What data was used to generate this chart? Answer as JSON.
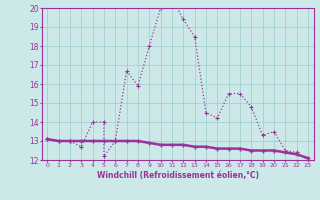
{
  "line1_x": [
    0,
    1,
    2,
    3,
    4,
    5,
    5,
    6,
    7,
    8,
    9,
    10,
    11,
    12,
    13,
    14,
    15,
    16,
    17,
    18,
    19,
    20,
    21,
    22,
    23
  ],
  "line1_y": [
    13.1,
    13.0,
    13.0,
    12.7,
    14.0,
    14.0,
    12.2,
    13.0,
    16.7,
    15.9,
    18.0,
    20.0,
    20.5,
    19.4,
    18.5,
    14.5,
    14.2,
    15.5,
    15.5,
    14.8,
    13.3,
    13.5,
    12.5,
    12.4,
    12.0
  ],
  "line2_x": [
    0,
    1,
    2,
    3,
    4,
    5,
    6,
    7,
    8,
    9,
    10,
    11,
    12,
    13,
    14,
    15,
    16,
    17,
    18,
    19,
    20,
    21,
    22,
    23
  ],
  "line2_y": [
    13.1,
    13.0,
    13.0,
    13.0,
    13.0,
    13.0,
    13.0,
    13.0,
    13.0,
    12.9,
    12.8,
    12.8,
    12.8,
    12.7,
    12.7,
    12.6,
    12.6,
    12.6,
    12.5,
    12.5,
    12.5,
    12.4,
    12.3,
    12.1
  ],
  "line_color": "#993399",
  "bg_color": "#cce8e8",
  "grid_color": "#99cccc",
  "xlabel": "Windchill (Refroidissement éolien,°C)",
  "xlim": [
    -0.5,
    23.5
  ],
  "ylim": [
    12,
    20
  ],
  "yticks": [
    12,
    13,
    14,
    15,
    16,
    17,
    18,
    19,
    20
  ],
  "xticks": [
    0,
    1,
    2,
    3,
    4,
    5,
    6,
    7,
    8,
    9,
    10,
    11,
    12,
    13,
    14,
    15,
    16,
    17,
    18,
    19,
    20,
    21,
    22,
    23
  ]
}
